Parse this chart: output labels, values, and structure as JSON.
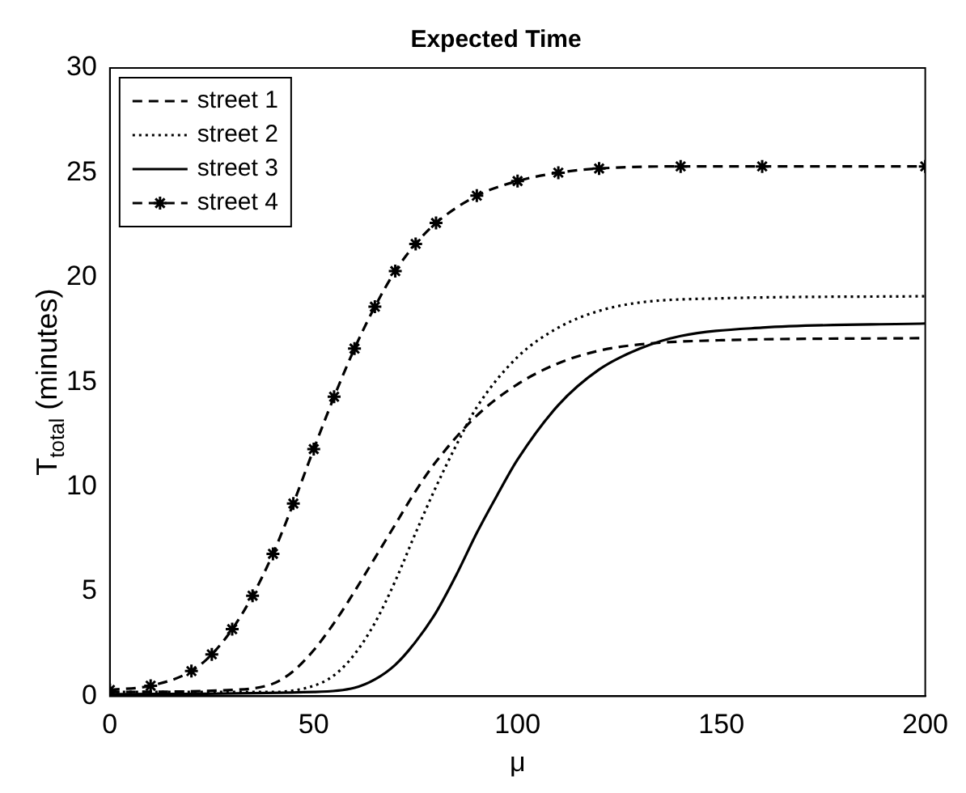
{
  "chart_data": {
    "type": "line",
    "title": "Expected Time",
    "xlabel": "μ",
    "ylabel": "T$_{total}$ (minutes)",
    "xlim": [
      0,
      200
    ],
    "xticks": [
      0,
      50,
      100,
      150,
      200
    ],
    "ylim": [
      0,
      30
    ],
    "yticks": [
      0,
      5,
      10,
      15,
      20,
      25,
      30
    ],
    "grid": false,
    "legend": "top left",
    "series": [
      {
        "name": "street 1",
        "color": "#000000",
        "line_style": "dashed",
        "marker": "none",
        "x": [
          0,
          30,
          40,
          45,
          50,
          55,
          60,
          65,
          70,
          75,
          80,
          90,
          100,
          110,
          120,
          130,
          150,
          200
        ],
        "values": [
          0.2,
          0.3,
          0.6,
          1.2,
          2.2,
          3.5,
          5.0,
          6.6,
          8.2,
          9.8,
          11.2,
          13.4,
          14.9,
          15.9,
          16.5,
          16.8,
          17.0,
          17.1
        ]
      },
      {
        "name": "street 2",
        "color": "#000000",
        "line_style": "dotted",
        "marker": "none",
        "x": [
          0,
          40,
          50,
          55,
          60,
          65,
          70,
          75,
          80,
          85,
          90,
          100,
          110,
          120,
          130,
          150,
          200
        ],
        "values": [
          0.2,
          0.2,
          0.5,
          1.0,
          2.0,
          3.5,
          5.5,
          7.8,
          10.0,
          12.0,
          13.8,
          16.2,
          17.6,
          18.4,
          18.8,
          19.0,
          19.1
        ]
      },
      {
        "name": "street 3",
        "color": "#000000",
        "line_style": "solid",
        "marker": "none",
        "x": [
          0,
          50,
          60,
          65,
          70,
          75,
          80,
          85,
          90,
          95,
          100,
          110,
          120,
          130,
          140,
          160,
          200
        ],
        "values": [
          0.1,
          0.2,
          0.4,
          0.8,
          1.5,
          2.6,
          4.0,
          5.8,
          7.8,
          9.6,
          11.3,
          13.9,
          15.6,
          16.6,
          17.2,
          17.6,
          17.8
        ]
      },
      {
        "name": "street 4",
        "color": "#000000",
        "line_style": "dashed",
        "marker": "cross",
        "x": [
          0,
          10,
          20,
          25,
          30,
          35,
          40,
          45,
          50,
          55,
          60,
          65,
          70,
          75,
          80,
          90,
          100,
          110,
          120,
          140,
          160,
          200
        ],
        "values": [
          0.3,
          0.5,
          1.2,
          2.0,
          3.2,
          4.8,
          6.8,
          9.2,
          11.8,
          14.3,
          16.6,
          18.6,
          20.3,
          21.6,
          22.6,
          23.9,
          24.6,
          25.0,
          25.2,
          25.3,
          25.3,
          25.3
        ]
      }
    ]
  }
}
